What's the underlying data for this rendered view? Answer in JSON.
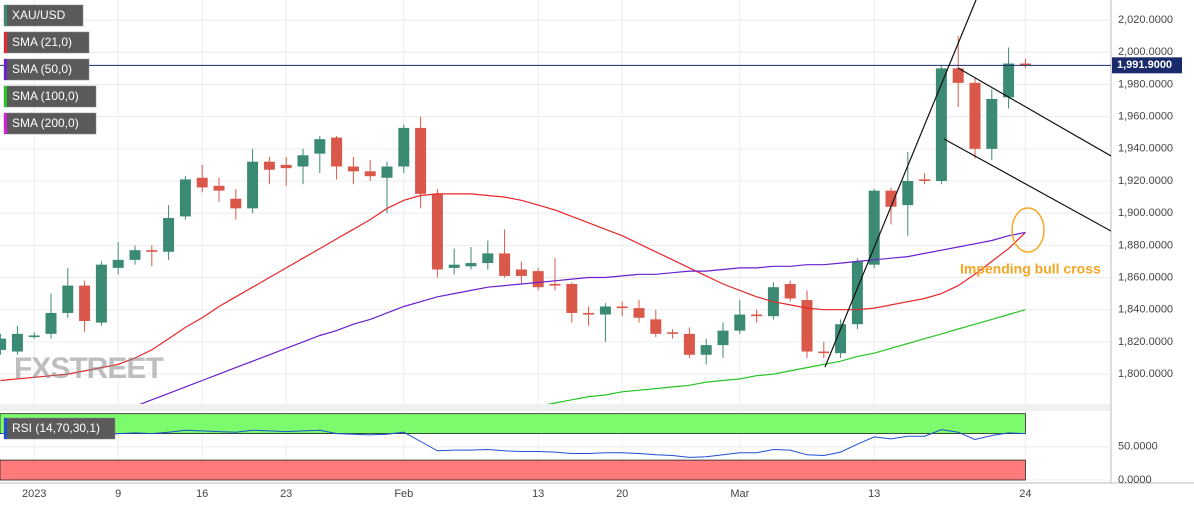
{
  "chart_data": [
    {
      "type": "candlestick",
      "name": "XAU/USD",
      "categories": [
        null,
        null,
        "2023",
        null,
        null,
        null,
        null,
        "9",
        null,
        null,
        null,
        null,
        "16",
        null,
        null,
        null,
        null,
        "23",
        null,
        null,
        null,
        null,
        null,
        null,
        "Feb",
        null,
        null,
        null,
        null,
        null,
        null,
        null,
        "13",
        null,
        null,
        null,
        null,
        "20",
        null,
        null,
        null,
        null,
        null,
        null,
        "Mar",
        null,
        null,
        null,
        null,
        null,
        null,
        null,
        "13",
        null,
        null,
        null,
        null,
        null,
        null,
        null,
        null,
        "24"
      ],
      "open": [
        1815,
        1814,
        1823,
        1825,
        1838,
        1855,
        1832,
        1866,
        1871,
        1877,
        1876,
        1898,
        1922,
        1917,
        1909,
        1903,
        1932,
        1930,
        1929,
        1937,
        1947,
        1929,
        1926,
        1922,
        1929,
        1953,
        1912,
        1866,
        1867,
        1869,
        1875,
        1865,
        1864,
        1856,
        1856,
        1838,
        1837,
        1842,
        1841,
        1834,
        1826,
        1825,
        1812,
        1818,
        1827,
        1837,
        1836,
        1856,
        1846,
        1814,
        1813,
        1831,
        1868,
        1914,
        1905,
        1921,
        1920,
        1990,
        1981,
        1940,
        1972,
        1993
      ],
      "high": [
        1825,
        1830,
        1826,
        1850,
        1866,
        1858,
        1870,
        1882,
        1880,
        1880,
        1905,
        1923,
        1930,
        1922,
        1915,
        1940,
        1935,
        1935,
        1940,
        1948,
        1948,
        1935,
        1933,
        1932,
        1955,
        1960,
        1915,
        1878,
        1879,
        1883,
        1890,
        1870,
        1866,
        1872,
        1857,
        1842,
        1844,
        1845,
        1846,
        1840,
        1828,
        1829,
        1822,
        1832,
        1846,
        1840,
        1857,
        1858,
        1852,
        1820,
        1834,
        1872,
        1915,
        1916,
        1938,
        1925,
        1992,
        2010,
        1984,
        1977,
        2003,
        1996
      ],
      "low": [
        1812,
        1812,
        1822,
        1822,
        1835,
        1826,
        1830,
        1862,
        1868,
        1867,
        1871,
        1896,
        1913,
        1907,
        1896,
        1900,
        1918,
        1917,
        1918,
        1925,
        1921,
        1918,
        1920,
        1900,
        1925,
        1903,
        1860,
        1862,
        1865,
        1865,
        1860,
        1856,
        1852,
        1852,
        1832,
        1830,
        1820,
        1836,
        1832,
        1823,
        1822,
        1810,
        1806,
        1810,
        1825,
        1832,
        1834,
        1845,
        1810,
        1810,
        1810,
        1828,
        1866,
        1893,
        1886,
        1918,
        1918,
        1966,
        1934,
        1933,
        1965,
        1990
      ],
      "close": [
        1822,
        1825,
        1824,
        1838,
        1855,
        1833,
        1868,
        1871,
        1877,
        1876,
        1897,
        1921,
        1916,
        1914,
        1903,
        1932,
        1927,
        1928,
        1936,
        1946,
        1929,
        1926,
        1923,
        1929,
        1953,
        1912,
        1865,
        1868,
        1869,
        1875,
        1861,
        1861,
        1854,
        1855,
        1838,
        1837,
        1842,
        1841,
        1835,
        1825,
        1825,
        1812,
        1818,
        1827,
        1837,
        1836,
        1854,
        1847,
        1814,
        1813,
        1831,
        1870,
        1914,
        1904,
        1920,
        1920,
        1990,
        1981,
        1940,
        1971,
        1993,
        1992
      ],
      "up_color": "#3b8a74",
      "down_color": "#d9584a",
      "legend_color": "#3b8a74",
      "series": [
        {
          "name": "SMA (21,0)",
          "color": "#e8272a",
          "values": [
            1796,
            1797,
            1798,
            1799,
            1800,
            1802,
            1804,
            1806,
            1810,
            1815,
            1822,
            1829,
            1835,
            1842,
            1848,
            1854,
            1860,
            1866,
            1872,
            1878,
            1884,
            1890,
            1896,
            1903,
            1908,
            1911,
            1912,
            1912,
            1912,
            1911,
            1910,
            1908,
            1905,
            1902,
            1898,
            1894,
            1890,
            1886,
            1881,
            1876,
            1871,
            1866,
            1861,
            1856,
            1852,
            1848,
            1845,
            1843,
            1841,
            1840,
            1840,
            1840,
            1841,
            1843,
            1845,
            1847,
            1850,
            1855,
            1862,
            1870,
            1878,
            1888
          ]
        },
        {
          "name": "SMA (50,0)",
          "color": "#6a1fd1",
          "values": [
            null,
            null,
            null,
            null,
            null,
            null,
            null,
            null,
            1780,
            1784,
            1788,
            1792,
            1796,
            1800,
            1804,
            1808,
            1812,
            1816,
            1820,
            1824,
            1827,
            1831,
            1834,
            1838,
            1842,
            1845,
            1848,
            1850,
            1852,
            1854,
            1855,
            1856,
            1857,
            1858,
            1859,
            1860,
            1860,
            1861,
            1862,
            1862,
            1863,
            1864,
            1864,
            1865,
            1866,
            1866,
            1867,
            1867,
            1868,
            1868,
            1869,
            1870,
            1871,
            1872,
            1873,
            1875,
            1877,
            1879,
            1881,
            1883,
            1886,
            1888
          ]
        },
        {
          "name": "SMA (100,0)",
          "color": "#27c427",
          "values": [
            null,
            null,
            null,
            null,
            null,
            null,
            null,
            null,
            null,
            null,
            null,
            null,
            null,
            null,
            null,
            null,
            null,
            null,
            null,
            null,
            null,
            null,
            null,
            null,
            null,
            null,
            null,
            null,
            null,
            null,
            null,
            null,
            1780,
            1782,
            1784,
            1786,
            1787,
            1789,
            1790,
            1791,
            1792,
            1793,
            1795,
            1796,
            1797,
            1799,
            1800,
            1802,
            1804,
            1806,
            1808,
            1811,
            1813,
            1816,
            1819,
            1822,
            1825,
            1828,
            1831,
            1834,
            1837,
            1840
          ]
        },
        {
          "name": "SMA (200,0)",
          "color": "#d61fd6",
          "values": [
            null,
            null,
            null,
            null,
            null,
            null,
            null,
            null,
            null,
            null,
            null,
            null,
            null,
            null,
            null,
            null,
            null,
            null,
            null,
            null,
            null,
            null,
            null,
            null,
            null,
            null,
            null,
            null,
            null,
            null,
            null,
            null,
            null,
            null,
            null,
            null,
            null,
            null,
            null,
            null,
            null,
            null,
            null,
            null,
            null,
            null,
            null,
            null,
            null,
            null,
            null,
            null,
            null,
            null,
            null,
            null,
            null,
            null,
            null,
            null,
            null,
            null
          ]
        }
      ],
      "last_price": {
        "value": 1991.9,
        "label": "1,991.9000"
      },
      "last_price_color": "#1b2a6b",
      "ylim": [
        1781.4,
        2032.5
      ],
      "yticks": [
        {
          "value": 1800,
          "label": "1,800.0000"
        },
        {
          "value": 1820,
          "label": "1,820.0000"
        },
        {
          "value": 1840,
          "label": "1,840.0000"
        },
        {
          "value": 1860,
          "label": "1,860.0000"
        },
        {
          "value": 1880,
          "label": "1,880.0000"
        },
        {
          "value": 1900,
          "label": "1,900.0000"
        },
        {
          "value": 1920,
          "label": "1,920.0000"
        },
        {
          "value": 1940,
          "label": "1,940.0000"
        },
        {
          "value": 1960,
          "label": "1,960.0000"
        },
        {
          "value": 1980,
          "label": "1,980.0000"
        },
        {
          "value": 2000,
          "label": "2,000.0000"
        },
        {
          "value": 2020,
          "label": "2,020.0000"
        }
      ],
      "grid": true,
      "annotation": "Impending bull cross",
      "watermark": "FXSTREET"
    },
    {
      "type": "line",
      "name": "RSI (14,70,30,1)",
      "color": "#1f4fd1",
      "values": [
        70,
        71,
        72,
        72,
        70,
        64,
        68,
        70,
        71,
        70,
        72,
        75,
        74,
        73,
        72,
        75,
        74,
        73,
        74,
        75,
        70,
        69,
        68,
        69,
        72,
        58,
        44,
        45,
        45,
        46,
        44,
        43,
        43,
        42,
        40,
        40,
        41,
        41,
        40,
        38,
        37,
        34,
        35,
        38,
        41,
        41,
        46,
        45,
        38,
        37,
        42,
        54,
        65,
        62,
        66,
        66,
        76,
        72,
        61,
        67,
        71,
        70
      ],
      "zones": [
        {
          "from": 70,
          "to": 100,
          "color": "#7cfc6c"
        },
        {
          "from": 0,
          "to": 30,
          "color": "#ff7b7b"
        }
      ],
      "ylim": [
        0,
        104
      ],
      "yticks": [
        {
          "value": 0,
          "label": "0.0000"
        },
        {
          "value": 50,
          "label": "50.0000"
        }
      ]
    }
  ]
}
